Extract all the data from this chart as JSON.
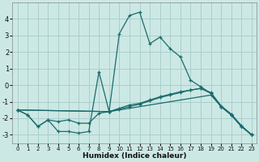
{
  "xlabel": "Humidex (Indice chaleur)",
  "bg_color": "#cce8e5",
  "grid_color": "#aacfcc",
  "line_color": "#1a6b6b",
  "series1": [
    [
      0,
      -1.5
    ],
    [
      1,
      -1.8
    ],
    [
      2,
      -2.5
    ],
    [
      3,
      -2.1
    ],
    [
      4,
      -2.8
    ],
    [
      5,
      -2.8
    ],
    [
      6,
      -2.9
    ],
    [
      7,
      -2.8
    ],
    [
      8,
      0.8
    ],
    [
      9,
      -1.6
    ],
    [
      10,
      3.1
    ],
    [
      11,
      4.2
    ],
    [
      12,
      4.4
    ],
    [
      13,
      2.5
    ],
    [
      14,
      2.9
    ],
    [
      15,
      2.2
    ],
    [
      16,
      1.7
    ],
    [
      17,
      0.3
    ],
    [
      18,
      -0.1
    ],
    [
      19,
      -0.5
    ],
    [
      20,
      -1.3
    ],
    [
      21,
      -1.8
    ],
    [
      22,
      -2.5
    ],
    [
      23,
      -3.0
    ]
  ],
  "series2": [
    [
      0,
      -1.5
    ],
    [
      1,
      -1.8
    ],
    [
      2,
      -2.5
    ],
    [
      3,
      -2.1
    ],
    [
      4,
      -2.2
    ],
    [
      5,
      -2.1
    ],
    [
      6,
      -2.3
    ],
    [
      7,
      -2.3
    ],
    [
      8,
      -1.7
    ],
    [
      9,
      -1.6
    ],
    [
      10,
      -1.4
    ],
    [
      11,
      -1.2
    ],
    [
      12,
      -1.1
    ],
    [
      13,
      -0.9
    ],
    [
      14,
      -0.7
    ],
    [
      15,
      -0.55
    ],
    [
      16,
      -0.4
    ],
    [
      17,
      -0.3
    ],
    [
      18,
      -0.2
    ],
    [
      19,
      -0.5
    ],
    [
      20,
      -1.3
    ],
    [
      21,
      -1.8
    ],
    [
      22,
      -2.5
    ],
    [
      23,
      -3.0
    ]
  ],
  "series3": [
    [
      0,
      -1.5
    ],
    [
      9,
      -1.6
    ],
    [
      10,
      -1.45
    ],
    [
      11,
      -1.3
    ],
    [
      12,
      -1.15
    ],
    [
      13,
      -0.95
    ],
    [
      14,
      -0.75
    ],
    [
      15,
      -0.6
    ],
    [
      16,
      -0.45
    ],
    [
      17,
      -0.3
    ],
    [
      18,
      -0.2
    ],
    [
      19,
      -0.45
    ],
    [
      20,
      -1.25
    ],
    [
      21,
      -1.75
    ],
    [
      22,
      -2.45
    ],
    [
      23,
      -3.0
    ]
  ],
  "series4": [
    [
      0,
      -1.5
    ],
    [
      9,
      -1.6
    ],
    [
      19,
      -0.6
    ],
    [
      20,
      -1.3
    ],
    [
      21,
      -1.8
    ],
    [
      22,
      -2.5
    ],
    [
      23,
      -3.0
    ]
  ],
  "ylim": [
    -3.5,
    5.0
  ],
  "xlim": [
    -0.5,
    23.5
  ],
  "yticks": [
    -3,
    -2,
    -1,
    0,
    1,
    2,
    3,
    4
  ],
  "xticks": [
    0,
    1,
    2,
    3,
    4,
    5,
    6,
    7,
    8,
    9,
    10,
    11,
    12,
    13,
    14,
    15,
    16,
    17,
    18,
    19,
    20,
    21,
    22,
    23
  ]
}
